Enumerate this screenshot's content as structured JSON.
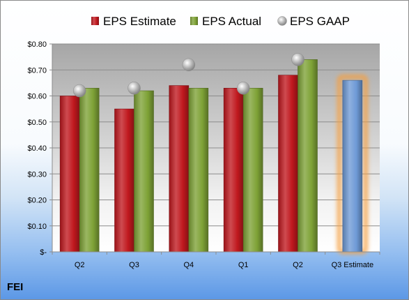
{
  "chart_data": {
    "type": "bar",
    "categories": [
      "Q2",
      "Q3",
      "Q4",
      "Q1",
      "Q2",
      "Q3 Estimate"
    ],
    "series": [
      {
        "name": "EPS Estimate",
        "values": [
          0.6,
          0.55,
          0.64,
          0.63,
          0.68,
          null
        ],
        "color": "#c0181e"
      },
      {
        "name": "EPS Actual",
        "values": [
          0.63,
          0.62,
          0.63,
          0.63,
          0.74,
          null
        ],
        "color": "#7ea236"
      },
      {
        "name": "EPS GAAP",
        "kind": "marker",
        "values": [
          0.62,
          0.63,
          0.72,
          0.63,
          0.74,
          null
        ],
        "color": "#a9a9a9"
      },
      {
        "name": "",
        "values": [
          null,
          null,
          null,
          null,
          null,
          0.66
        ],
        "color": "#6e9ad6",
        "highlight": "#f5a040"
      }
    ],
    "y_ticks": [
      {
        "value": 0,
        "label": "$-"
      },
      {
        "value": 0.1,
        "label": "$0.10"
      },
      {
        "value": 0.2,
        "label": "$0.20"
      },
      {
        "value": 0.3,
        "label": "$0.30"
      },
      {
        "value": 0.4,
        "label": "$0.40"
      },
      {
        "value": 0.5,
        "label": "$0.50"
      },
      {
        "value": 0.6,
        "label": "$0.60"
      },
      {
        "value": 0.7,
        "label": "$0.70"
      },
      {
        "value": 0.8,
        "label": "$0.80"
      }
    ],
    "ylim": [
      0,
      0.8
    ],
    "grid": true,
    "legend_position": "top",
    "title": "",
    "xlabel": "",
    "ylabel": ""
  },
  "footer": {
    "ticker": "FEI"
  }
}
